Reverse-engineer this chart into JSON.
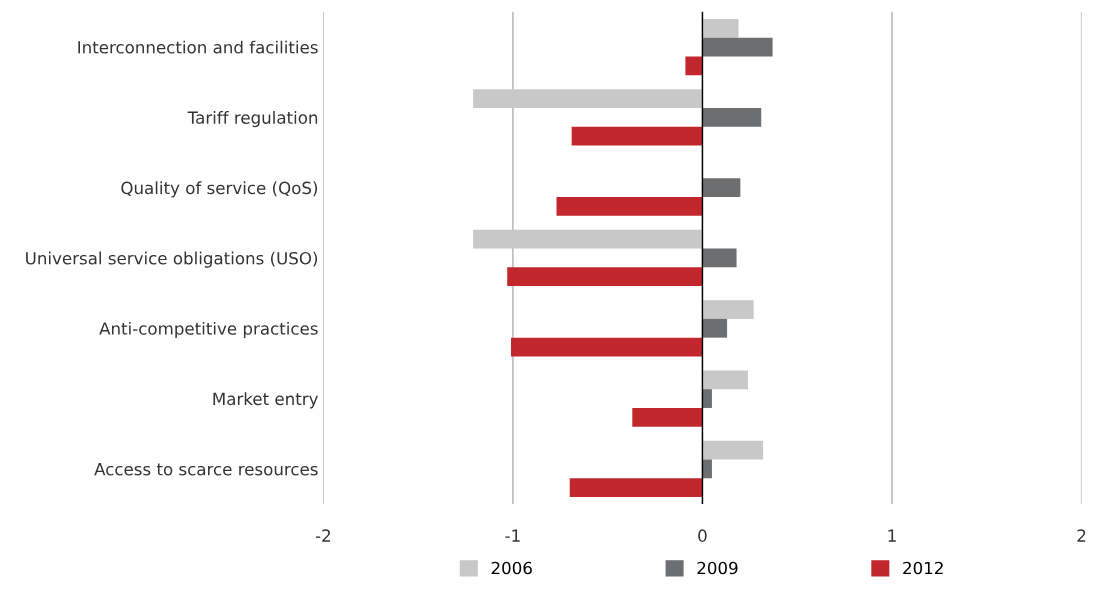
{
  "chart_data": {
    "type": "bar",
    "orientation": "horizontal",
    "categories": [
      "Interconnection and facilities",
      "Tariff regulation",
      "Quality of service (QoS)",
      "Universal service obligations (USO)",
      "Anti-competitive practices",
      "Market entry",
      "Access to scarce resources"
    ],
    "series": [
      {
        "name": "2006",
        "color": "#c8c8c8",
        "values": [
          0.19,
          -1.21,
          null,
          -1.21,
          0.27,
          0.24,
          0.32
        ]
      },
      {
        "name": "2009",
        "color": "#6d6e70",
        "values": [
          0.37,
          0.31,
          0.2,
          0.18,
          0.13,
          0.05,
          0.05
        ]
      },
      {
        "name": "2012",
        "color": "#c1272d",
        "values": [
          -0.09,
          -0.69,
          -0.77,
          -1.03,
          -1.01,
          -0.37,
          -0.7
        ]
      }
    ],
    "xlim": [
      -2,
      2
    ],
    "xticks": [
      -2,
      -1,
      0,
      1,
      2
    ],
    "grid": "x",
    "legend": "bottom"
  }
}
